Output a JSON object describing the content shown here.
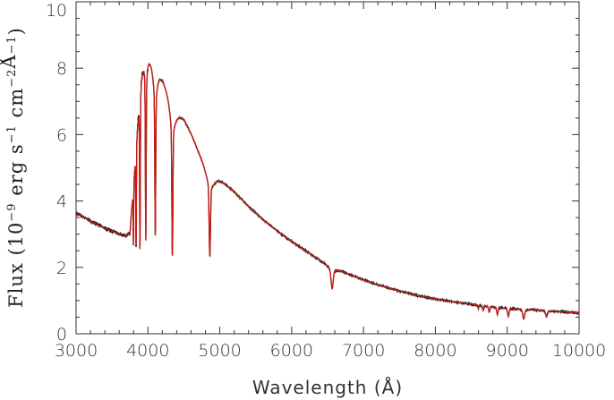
{
  "chart_data": {
    "type": "line",
    "xlabel": "Wavelength (Å)",
    "ylabel": {
      "prefix": "Flux (10",
      "exp1": "−9",
      "mid1": " erg s",
      "exp2": "−1",
      "mid2": " cm",
      "exp3": "−2",
      "unit": "Å",
      "exp4": "−1",
      "suffix": ")"
    },
    "xlim": [
      3000,
      10000
    ],
    "ylim": [
      0,
      10
    ],
    "xticks": [
      3000,
      4000,
      5000,
      6000,
      7000,
      8000,
      9000,
      10000
    ],
    "xtick_labels": [
      "3000",
      "4000",
      "5000",
      "6000",
      "7000",
      "8000",
      "9000",
      "10000"
    ],
    "yticks": [
      0,
      2,
      4,
      6,
      8,
      10
    ],
    "ytick_labels": [
      "0",
      "2",
      "4",
      "6",
      "8",
      "10"
    ],
    "grid": false,
    "colors": {
      "observed": "#111111",
      "model": "#cc1a12"
    },
    "continuum": [
      [
        3000,
        3.65
      ],
      [
        3200,
        3.4
      ],
      [
        3400,
        3.2
      ],
      [
        3600,
        3.02
      ],
      [
        3700,
        3.0
      ],
      [
        3750,
        3.1
      ],
      [
        3800,
        4.8
      ],
      [
        3850,
        6.6
      ],
      [
        3900,
        8.2
      ],
      [
        3950,
        8.6
      ],
      [
        4000,
        8.6
      ],
      [
        4100,
        8.2
      ],
      [
        4200,
        7.85
      ],
      [
        4300,
        7.35
      ],
      [
        4400,
        6.82
      ],
      [
        4500,
        6.55
      ],
      [
        4600,
        6.1
      ],
      [
        4700,
        5.6
      ],
      [
        4800,
        5.2
      ],
      [
        4900,
        4.88
      ],
      [
        5000,
        4.72
      ],
      [
        5200,
        4.3
      ],
      [
        5400,
        3.85
      ],
      [
        5600,
        3.45
      ],
      [
        5800,
        3.1
      ],
      [
        6000,
        2.78
      ],
      [
        6200,
        2.5
      ],
      [
        6400,
        2.22
      ],
      [
        6600,
        2.0
      ],
      [
        6800,
        1.8
      ],
      [
        7000,
        1.63
      ],
      [
        7200,
        1.48
      ],
      [
        7400,
        1.35
      ],
      [
        7600,
        1.23
      ],
      [
        7800,
        1.13
      ],
      [
        8000,
        1.05
      ],
      [
        8200,
        0.98
      ],
      [
        8400,
        0.92
      ],
      [
        8600,
        0.86
      ],
      [
        8800,
        0.82
      ],
      [
        9000,
        0.78
      ],
      [
        9200,
        0.75
      ],
      [
        9400,
        0.72
      ],
      [
        9600,
        0.69
      ],
      [
        9800,
        0.66
      ],
      [
        10000,
        0.62
      ]
    ],
    "absorption_lines": [
      {
        "center": 6563,
        "depth": 0.68,
        "width": 14,
        "wing": 60
      },
      {
        "center": 4861,
        "depth": 2.65,
        "width": 9,
        "wing": 70
      },
      {
        "center": 4340,
        "depth": 4.75,
        "width": 7,
        "wing": 45
      },
      {
        "center": 4102,
        "depth": 5.15,
        "width": 6,
        "wing": 32
      },
      {
        "center": 3970,
        "depth": 5.65,
        "width": 5,
        "wing": 22
      },
      {
        "center": 3889,
        "depth": 5.2,
        "width": 4.5,
        "wing": 18
      },
      {
        "center": 3835,
        "depth": 3.2,
        "width": 4,
        "wing": 14
      },
      {
        "center": 3798,
        "depth": 1.9,
        "width": 3,
        "wing": 10
      },
      {
        "center": 8598,
        "depth": 0.1,
        "width": 5,
        "wing": 12
      },
      {
        "center": 8665,
        "depth": 0.15,
        "width": 6,
        "wing": 14
      },
      {
        "center": 8750,
        "depth": 0.18,
        "width": 8,
        "wing": 18
      },
      {
        "center": 8863,
        "depth": 0.22,
        "width": 9,
        "wing": 20
      },
      {
        "center": 9015,
        "depth": 0.24,
        "width": 10,
        "wing": 24
      },
      {
        "center": 9229,
        "depth": 0.3,
        "width": 12,
        "wing": 28
      },
      {
        "center": 9546,
        "depth": 0.17,
        "width": 12,
        "wing": 30
      }
    ]
  }
}
